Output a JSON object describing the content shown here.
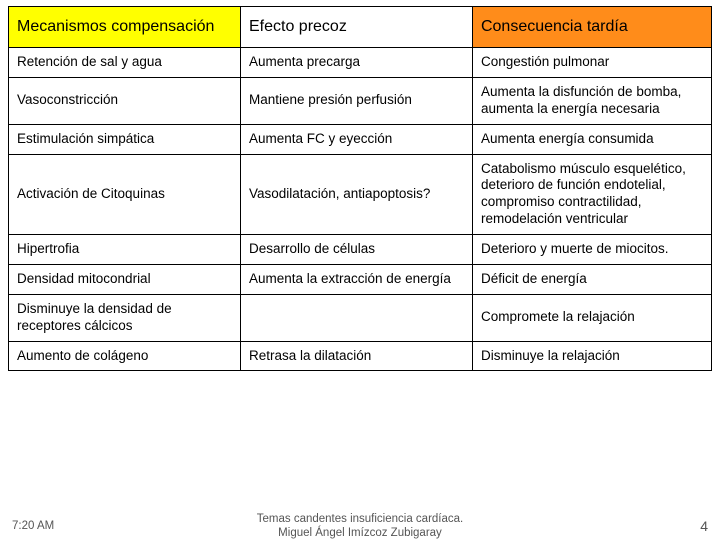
{
  "table": {
    "header_bg_colors": [
      "#ffff00",
      "#ffffff",
      "#ff8c1a"
    ],
    "border_color": "#000000",
    "columns": [
      "Mecanismos compensación",
      "Efecto precoz",
      "Consecuencia tardía"
    ],
    "rows": [
      [
        "Retención de sal y agua",
        "Aumenta precarga",
        "Congestión pulmonar"
      ],
      [
        "Vasoconstricción",
        "Mantiene presión perfusión",
        "Aumenta la disfunción de bomba, aumenta la energía necesaria"
      ],
      [
        "Estimulación simpática",
        "Aumenta FC y eyección",
        "Aumenta energía consumida"
      ],
      [
        "Activación de Citoquinas",
        "Vasodilatación, antiapoptosis?",
        "Catabolismo músculo esquelético, deterioro de función endotelial, compromiso contractilidad, remodelación ventricular"
      ],
      [
        "Hipertrofia",
        "Desarrollo  de células",
        "Deterioro y muerte de miocitos."
      ],
      [
        "Densidad mitocondrial",
        "Aumenta la extracción de energía",
        "Déficit de energía"
      ],
      [
        "Disminuye la densidad de receptores cálcicos",
        "",
        "Compromete la relajación"
      ],
      [
        "Aumento de colágeno",
        "Retrasa la dilatación",
        "Disminuye la relajación"
      ]
    ]
  },
  "footer": {
    "time": "7:20 AM",
    "center_line1": "Temas candentes insuficiencia cardíaca.",
    "center_line2": "Miguel Ángel Imízcoz Zubigaray",
    "page_number": "4"
  }
}
